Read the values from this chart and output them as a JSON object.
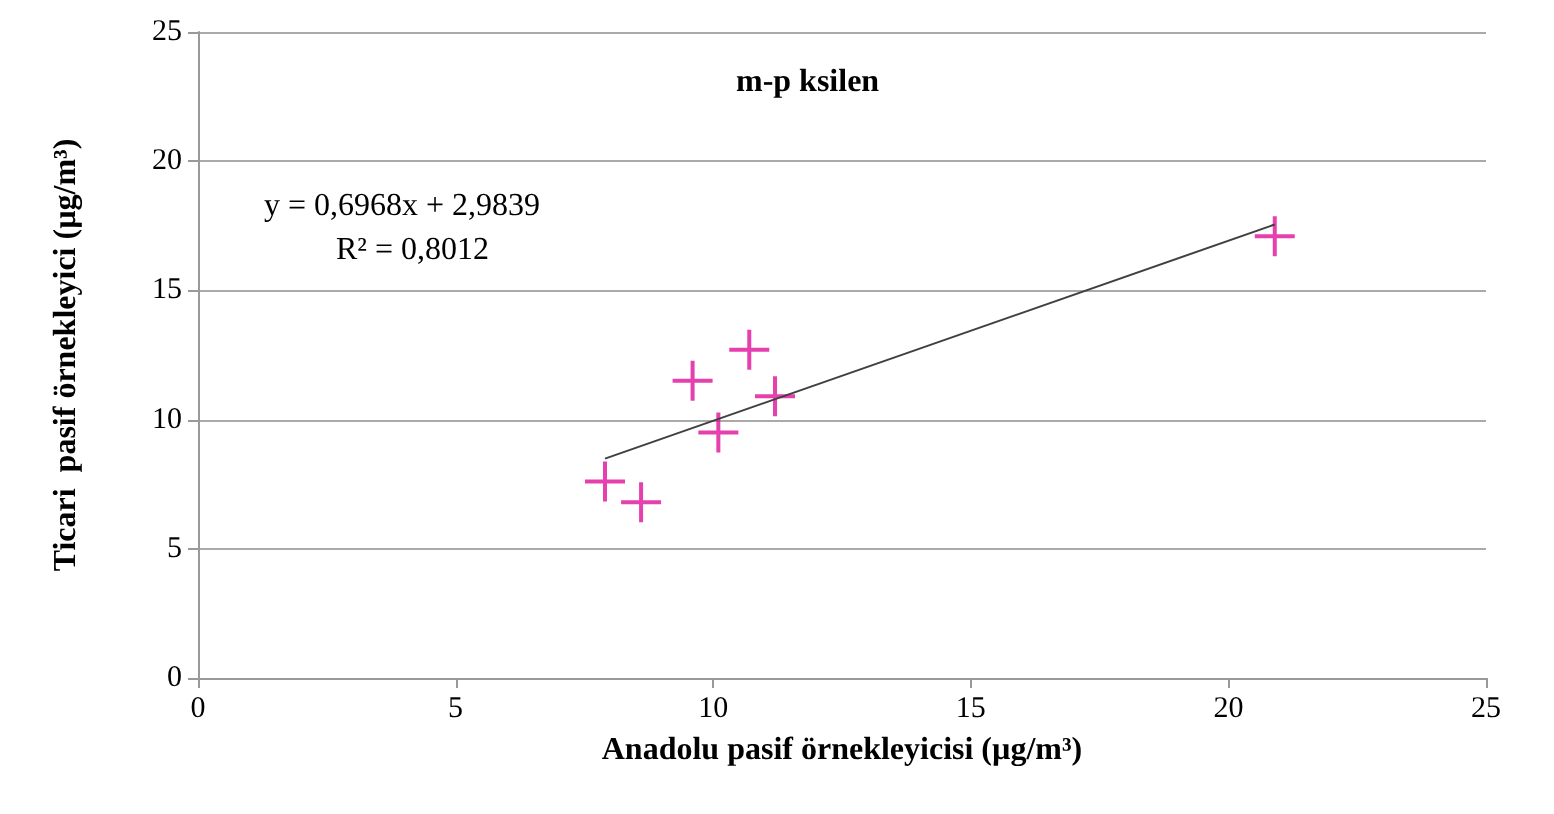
{
  "chart_data": {
    "type": "scatter",
    "title": "m-p ksilen",
    "xlabel": "Anadolu pasif örnekleyicisi (µg/m³)",
    "ylabel": "Ticari  pasif örnekleyici (µg/m³)",
    "x": [
      7.9,
      8.6,
      9.6,
      10.1,
      10.7,
      11.2,
      20.9
    ],
    "values": [
      7.6,
      6.8,
      11.5,
      9.5,
      12.7,
      10.9,
      17.1
    ],
    "color": "#e0109a",
    "marker": "cross",
    "series": [
      {
        "type": "line",
        "x": [
          7.9,
          20.9
        ],
        "values": [
          8.49,
          17.55
        ],
        "color": "#404040",
        "marker": "none"
      }
    ],
    "annotations": [
      "y = 0,6968x + 2,9839",
      "R² = 0,8012"
    ],
    "xlim": [
      0,
      25
    ],
    "xticks": [
      0,
      5,
      10,
      15,
      20,
      25
    ],
    "ylim": [
      0,
      25
    ],
    "yticks": [
      0,
      5,
      10,
      15,
      20,
      25
    ],
    "grid": "y"
  }
}
